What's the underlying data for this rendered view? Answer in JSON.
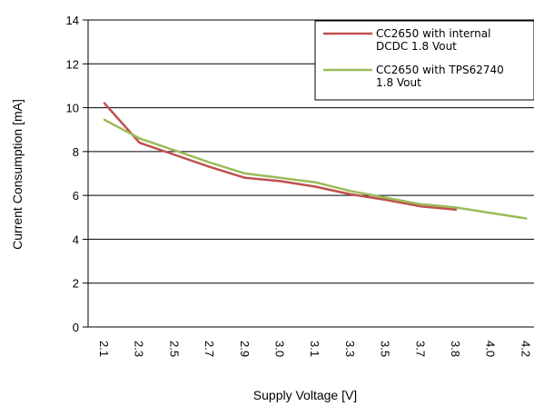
{
  "chart_data": {
    "type": "line",
    "title": "",
    "xlabel": "Supply Voltage [V]",
    "ylabel": "Current Consumption [mA]",
    "ylim": [
      0,
      14
    ],
    "yticks": [
      "0",
      "2",
      "4",
      "6",
      "8",
      "10",
      "12",
      "14"
    ],
    "categories": [
      "2.1",
      "2.3",
      "2.5",
      "2.7",
      "2.9",
      "3.0",
      "3.1",
      "3.3",
      "3.5",
      "3.7",
      "3.8",
      "4.0",
      "4.2"
    ],
    "grid": true,
    "legend_position": "top-right",
    "series": [
      {
        "name": "CC2650 with internal DCDC 1.8 Vout",
        "legend_lines": [
          "CC2650 with internal",
          "DCDC 1.8 Vout"
        ],
        "color": "#c0504d",
        "values": [
          10.2,
          8.4,
          7.85,
          7.3,
          6.8,
          6.65,
          6.4,
          6.05,
          5.8,
          5.5,
          5.35,
          null,
          null
        ]
      },
      {
        "name": "CC2650 with TPS62740 1.8 Vout",
        "legend_lines": [
          "CC2650 with TPS62740",
          "1.8 Vout"
        ],
        "color": "#9bbb59",
        "values": [
          9.45,
          8.6,
          8.05,
          7.5,
          7.0,
          6.8,
          6.6,
          6.2,
          5.9,
          5.6,
          5.45,
          5.2,
          4.95
        ]
      }
    ]
  }
}
